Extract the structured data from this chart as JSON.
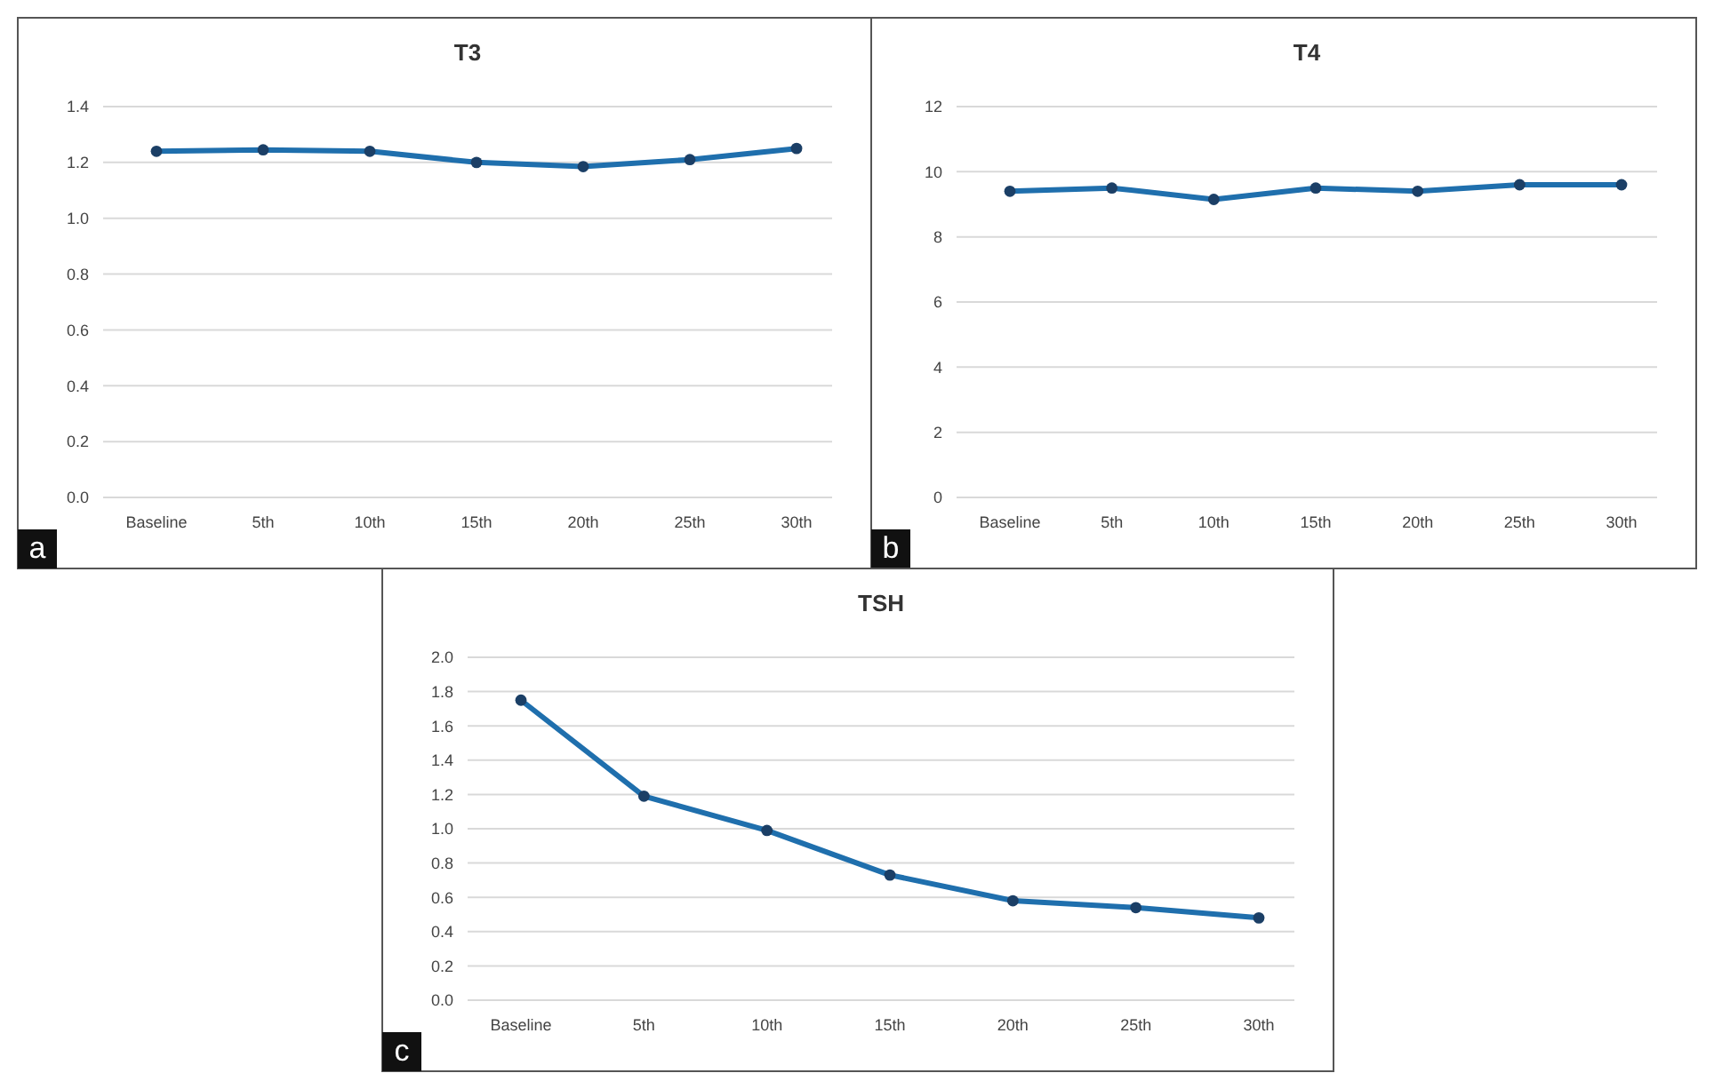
{
  "chart_data": [
    {
      "type": "line",
      "title": "T3",
      "categories": [
        "Baseline",
        "5th",
        "10th",
        "15th",
        "20th",
        "25th",
        "30th"
      ],
      "values": [
        1.24,
        1.245,
        1.24,
        1.2,
        1.185,
        1.21,
        1.25
      ],
      "color": "#1f6fad",
      "marker": "circle",
      "grid": "y",
      "ylim": [
        0,
        1.4
      ],
      "yticks": [
        {
          "value": 0,
          "label": "0.0"
        },
        {
          "value": 0.2,
          "label": "0.2"
        },
        {
          "value": 0.4,
          "label": "0.4"
        },
        {
          "value": 0.6,
          "label": "0.6"
        },
        {
          "value": 0.8,
          "label": "0.8"
        },
        {
          "value": 1,
          "label": "1.0"
        },
        {
          "value": 1.2,
          "label": "1.2"
        },
        {
          "value": 1.4,
          "label": "1.4"
        }
      ],
      "annotations": [
        "a"
      ]
    },
    {
      "type": "line",
      "title": "T4",
      "categories": [
        "Baseline",
        "5th",
        "10th",
        "15th",
        "20th",
        "25th",
        "30th"
      ],
      "values": [
        9.4,
        9.5,
        9.15,
        9.5,
        9.4,
        9.6,
        9.6
      ],
      "color": "#1f6fad",
      "marker": "circle",
      "grid": "y",
      "ylim": [
        0,
        12
      ],
      "yticks": [
        0,
        2,
        4,
        6,
        8,
        10,
        12
      ],
      "annotations": [
        "b"
      ]
    },
    {
      "type": "line",
      "title": "TSH",
      "categories": [
        "Baseline",
        "5th",
        "10th",
        "15th",
        "20th",
        "25th",
        "30th"
      ],
      "values": [
        1.75,
        1.19,
        0.99,
        0.73,
        0.58,
        0.54,
        0.48
      ],
      "color": "#1f6fad",
      "marker": "circle",
      "grid": "y",
      "ylim": [
        0,
        2
      ],
      "yticks": [
        {
          "value": 0,
          "label": "0.0"
        },
        {
          "value": 0.2,
          "label": "0.2"
        },
        {
          "value": 0.4,
          "label": "0.4"
        },
        {
          "value": 0.6,
          "label": "0.6"
        },
        {
          "value": 0.8,
          "label": "0.8"
        },
        {
          "value": 1,
          "label": "1.0"
        },
        {
          "value": 1.2,
          "label": "1.2"
        },
        {
          "value": 1.4,
          "label": "1.4"
        },
        {
          "value": 1.6,
          "label": "1.6"
        },
        {
          "value": 1.8,
          "label": "1.8"
        },
        {
          "value": 2,
          "label": "2.0"
        }
      ],
      "annotations": [
        "c"
      ]
    }
  ]
}
